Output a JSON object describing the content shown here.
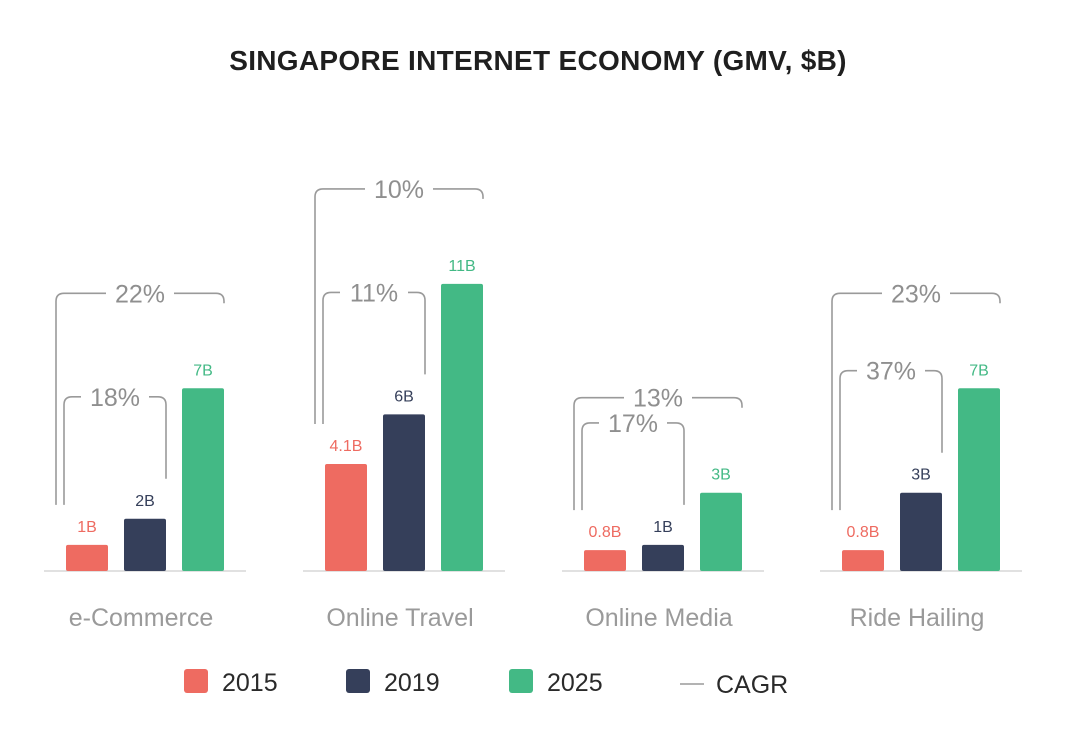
{
  "chart_data": {
    "type": "bar",
    "title": "SINGAPORE INTERNET ECONOMY (GMV, $B)",
    "categories": [
      "e-Commerce",
      "Online Travel",
      "Online Media",
      "Ride Hailing"
    ],
    "series": [
      {
        "name": "2015",
        "color": "#ee6b61",
        "values": [
          1,
          4.1,
          0.8,
          0.8
        ],
        "labels": [
          "1B",
          "4.1B",
          "0.8B",
          "0.8B"
        ]
      },
      {
        "name": "2019",
        "color": "#353f5a",
        "values": [
          2,
          6,
          1,
          3
        ],
        "labels": [
          "2B",
          "6B",
          "1B",
          "3B"
        ]
      },
      {
        "name": "2025",
        "color": "#43b985",
        "values": [
          7,
          11,
          3,
          7
        ],
        "labels": [
          "7B",
          "11B",
          "3B",
          "7B"
        ]
      }
    ],
    "cagr": [
      {
        "category": "e-Commerce",
        "outer": "22%",
        "inner": "18%"
      },
      {
        "category": "Online Travel",
        "outer": "10%",
        "inner": "11%"
      },
      {
        "category": "Online Media",
        "outer": "13%",
        "inner": "17%"
      },
      {
        "category": "Ride Hailing",
        "outer": "23%",
        "inner": "37%"
      }
    ],
    "legend": [
      {
        "label": "2015",
        "color": "#ee6b61",
        "kind": "swatch"
      },
      {
        "label": "2019",
        "color": "#353f5a",
        "kind": "swatch"
      },
      {
        "label": "2025",
        "color": "#43b985",
        "kind": "swatch"
      },
      {
        "label": "CAGR",
        "color": "#9a9a9a",
        "kind": "line"
      }
    ],
    "legend_position": "bottom"
  }
}
